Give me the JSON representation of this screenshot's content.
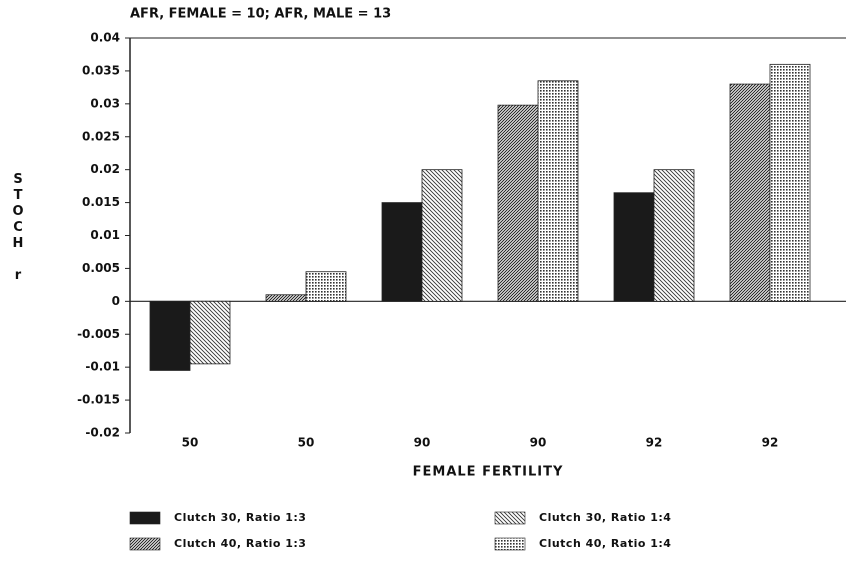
{
  "chart_data": {
    "type": "bar",
    "title": "AFR, FEMALE = 10;  AFR, MALE = 13",
    "y_label": "STOCH r",
    "x_label": "FEMALE FERTILITY",
    "categories": [
      "50",
      "50",
      "90",
      "90",
      "92",
      "92"
    ],
    "series": [
      {
        "name": "Clutch 30, Ratio 1:3",
        "color": "#1a1a1a",
        "values": [
          -0.0105,
          null,
          0.015,
          null,
          0.0165,
          null
        ]
      },
      {
        "name": "Clutch 30, Ratio 1:4",
        "color": "#333333",
        "values": [
          -0.0095,
          null,
          0.02,
          null,
          0.02,
          null
        ]
      },
      {
        "name": "Clutch 40, Ratio 1:3",
        "color": "#222222",
        "values": [
          null,
          0.001,
          null,
          0.0298,
          null,
          0.033
        ]
      },
      {
        "name": "Clutch 40, Ratio 1:4",
        "color": "#333333",
        "values": [
          null,
          0.0045,
          null,
          0.0335,
          null,
          0.036
        ]
      }
    ],
    "ylim": [
      -0.02,
      0.04
    ],
    "yticks": [
      0.04,
      0.035,
      0.03,
      0.025,
      0.02,
      0.015,
      0.01,
      0.005,
      0,
      -0.005,
      -0.01,
      -0.015,
      -0.02
    ]
  }
}
